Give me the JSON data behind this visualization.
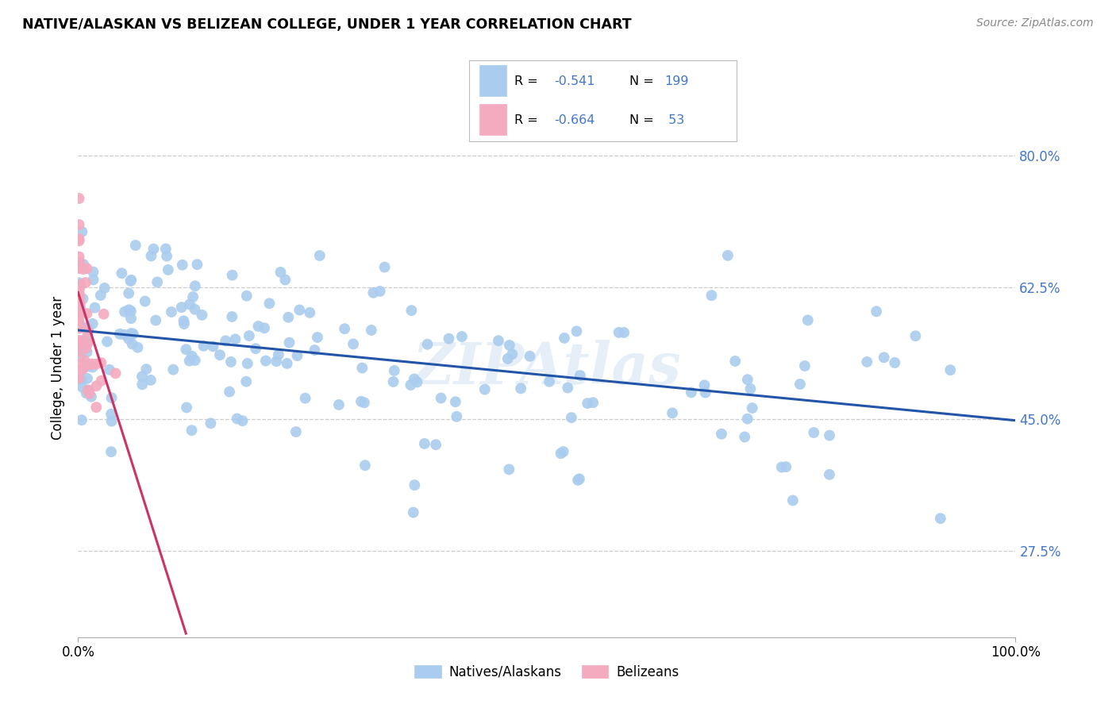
{
  "title": "NATIVE/ALASKAN VS BELIZEAN COLLEGE, UNDER 1 YEAR CORRELATION CHART",
  "source": "Source: ZipAtlas.com",
  "ylabel": "College, Under 1 year",
  "watermark": "ZIPAtlas",
  "legend_labels": [
    "Natives/Alaskans",
    "Belizeans"
  ],
  "native_color": "#aaccee",
  "belizean_color": "#f4aabf",
  "native_line_color": "#2255aa",
  "belizean_line_color": "#cc3366",
  "background_color": "#ffffff",
  "grid_color": "#cccccc",
  "ytick_color": "#4477cc",
  "xlim": [
    0.0,
    1.0
  ],
  "ylim": [
    0.16,
    0.875
  ],
  "ytick_vals": [
    0.275,
    0.45,
    0.625,
    0.8
  ],
  "ytick_labels": [
    "27.5%",
    "45.0%",
    "62.5%",
    "80.0%"
  ],
  "native_line_x": [
    0.0,
    1.0
  ],
  "native_line_y": [
    0.568,
    0.448
  ],
  "belizean_line_x": [
    0.0,
    0.115
  ],
  "belizean_line_y": [
    0.618,
    0.165
  ]
}
